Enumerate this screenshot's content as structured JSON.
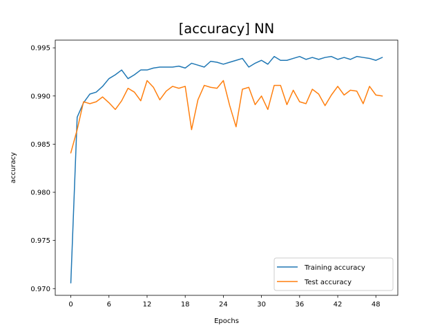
{
  "chart_data": {
    "type": "line",
    "title": "[accuracy] NN",
    "xlabel": "Epochs",
    "ylabel": "accuracy",
    "xlim": [
      -2.45,
      51.45
    ],
    "ylim": [
      0.9693,
      0.9958
    ],
    "xticks": [
      0,
      6,
      12,
      18,
      24,
      30,
      36,
      42,
      48
    ],
    "yticks": [
      0.97,
      0.975,
      0.98,
      0.985,
      0.99,
      0.995
    ],
    "ytick_labels": [
      "0.970",
      "0.975",
      "0.980",
      "0.985",
      "0.990",
      "0.995"
    ],
    "grid": false,
    "legend_position": "lower-right",
    "x": [
      0,
      1,
      2,
      3,
      4,
      5,
      6,
      7,
      8,
      9,
      10,
      11,
      12,
      13,
      14,
      15,
      16,
      17,
      18,
      19,
      20,
      21,
      22,
      23,
      24,
      25,
      26,
      27,
      28,
      29,
      30,
      31,
      32,
      33,
      34,
      35,
      36,
      37,
      38,
      39,
      40,
      41,
      42,
      43,
      44,
      45,
      46,
      47,
      48,
      49
    ],
    "series": [
      {
        "name": "Training accuracy",
        "color": "#1f77b4",
        "values": [
          0.9706,
          0.9878,
          0.9893,
          0.9902,
          0.9904,
          0.991,
          0.9918,
          0.9922,
          0.9927,
          0.9918,
          0.9922,
          0.9927,
          0.9927,
          0.9929,
          0.993,
          0.993,
          0.993,
          0.9931,
          0.9929,
          0.9934,
          0.9932,
          0.993,
          0.9936,
          0.9935,
          0.9933,
          0.9935,
          0.9937,
          0.9939,
          0.993,
          0.9934,
          0.9937,
          0.9933,
          0.9941,
          0.9937,
          0.9937,
          0.9939,
          0.9941,
          0.9938,
          0.994,
          0.9938,
          0.994,
          0.9941,
          0.9938,
          0.994,
          0.9938,
          0.9941,
          0.994,
          0.9939,
          0.9937,
          0.994
        ]
      },
      {
        "name": "Test accuracy",
        "color": "#ff7f0e",
        "values": [
          0.9841,
          0.9865,
          0.9894,
          0.9892,
          0.9894,
          0.9899,
          0.9893,
          0.9886,
          0.9895,
          0.9908,
          0.9904,
          0.9895,
          0.9916,
          0.9909,
          0.9896,
          0.9905,
          0.991,
          0.9908,
          0.991,
          0.9865,
          0.9896,
          0.9911,
          0.9909,
          0.9908,
          0.9916,
          0.989,
          0.9868,
          0.9907,
          0.9909,
          0.9891,
          0.99,
          0.9886,
          0.9911,
          0.9911,
          0.9891,
          0.9906,
          0.9894,
          0.9892,
          0.9907,
          0.9902,
          0.989,
          0.9901,
          0.991,
          0.9901,
          0.9906,
          0.9905,
          0.9892,
          0.991,
          0.9901,
          0.99
        ]
      }
    ]
  }
}
